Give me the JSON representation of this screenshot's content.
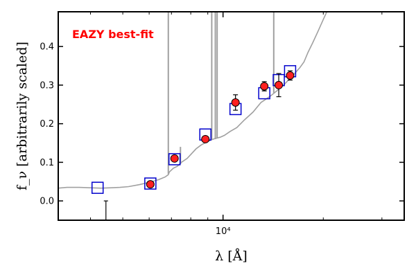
{
  "chart_data": {
    "type": "scatter",
    "title": "",
    "xlabel": "λ [Å]",
    "ylabel": "f_ν [arbitrarily scaled]",
    "xscale": "log",
    "xlim": [
      3200,
      35000
    ],
    "ylim": [
      -0.05,
      0.49
    ],
    "x_ticks": [
      {
        "value": 10000,
        "label": "10⁴"
      }
    ],
    "y_ticks": [
      {
        "value": 0.0,
        "label": "0.0"
      },
      {
        "value": 0.1,
        "label": "0.1"
      },
      {
        "value": 0.2,
        "label": "0.2"
      },
      {
        "value": 0.3,
        "label": "0.3"
      },
      {
        "value": 0.4,
        "label": "0.4"
      }
    ],
    "grid": false,
    "annotations": [
      {
        "text": "EAZY best-fit",
        "color": "#ff0000",
        "position": "top-left"
      }
    ],
    "series": [
      {
        "style": "line",
        "color": "#a0a0a0",
        "x": [
          3200,
          3400,
          3700,
          4000,
          4300,
          4600,
          4900,
          5200,
          5600,
          6000,
          6400,
          6700,
          6850,
          6900,
          7100,
          7300,
          7500,
          7800,
          8000,
          8300,
          8600,
          8900,
          9200,
          9500,
          9800,
          10100,
          10500,
          11000,
          11600,
          12300,
          13000,
          13800,
          14500,
          15200,
          15800,
          16400,
          17000,
          17500,
          18000,
          18600,
          19300,
          20000,
          20500
        ],
        "y": [
          0.033,
          0.035,
          0.035,
          0.034,
          0.033,
          0.034,
          0.035,
          0.037,
          0.042,
          0.048,
          0.055,
          0.062,
          0.068,
          0.075,
          0.085,
          0.09,
          0.1,
          0.11,
          0.12,
          0.135,
          0.145,
          0.152,
          0.158,
          0.162,
          0.165,
          0.17,
          0.18,
          0.19,
          0.21,
          0.23,
          0.255,
          0.27,
          0.285,
          0.3,
          0.315,
          0.33,
          0.345,
          0.36,
          0.385,
          0.41,
          0.44,
          0.47,
          0.49
        ]
      },
      {
        "style": "emission-lines",
        "color": "#a0a0a0",
        "lines": [
          {
            "x": 6850,
            "y0": 0.07,
            "y1": 0.49
          },
          {
            "x": 7450,
            "y0": 0.095,
            "y1": 0.14
          },
          {
            "x": 9250,
            "y0": 0.158,
            "y1": 0.49
          },
          {
            "x": 9480,
            "y0": 0.16,
            "y1": 0.49
          },
          {
            "x": 9600,
            "y0": 0.162,
            "y1": 0.49
          },
          {
            "x": 14200,
            "y0": 0.28,
            "y1": 0.49
          }
        ]
      },
      {
        "style": "model-photometry",
        "marker": "open-square",
        "color": "#0000cc",
        "x": [
          4200,
          6050,
          7150,
          8850,
          10900,
          13300,
          14700,
          15900
        ],
        "y": [
          0.034,
          0.045,
          0.108,
          0.172,
          0.238,
          0.279,
          0.313,
          0.336
        ]
      },
      {
        "style": "observed-photometry",
        "marker": "filled-circle",
        "color": "#ff2020",
        "x": [
          6050,
          7150,
          8850,
          10900,
          13300,
          14700,
          15900
        ],
        "y": [
          0.043,
          0.11,
          0.16,
          0.255,
          0.297,
          0.3,
          0.325
        ],
        "yerr": [
          0.005,
          0.006,
          0.007,
          0.02,
          0.012,
          0.03,
          0.012
        ]
      },
      {
        "style": "upper-limit",
        "color": "#000000",
        "x": [
          4450
        ],
        "y": [
          0.0
        ],
        "y_low": -0.05
      }
    ]
  }
}
